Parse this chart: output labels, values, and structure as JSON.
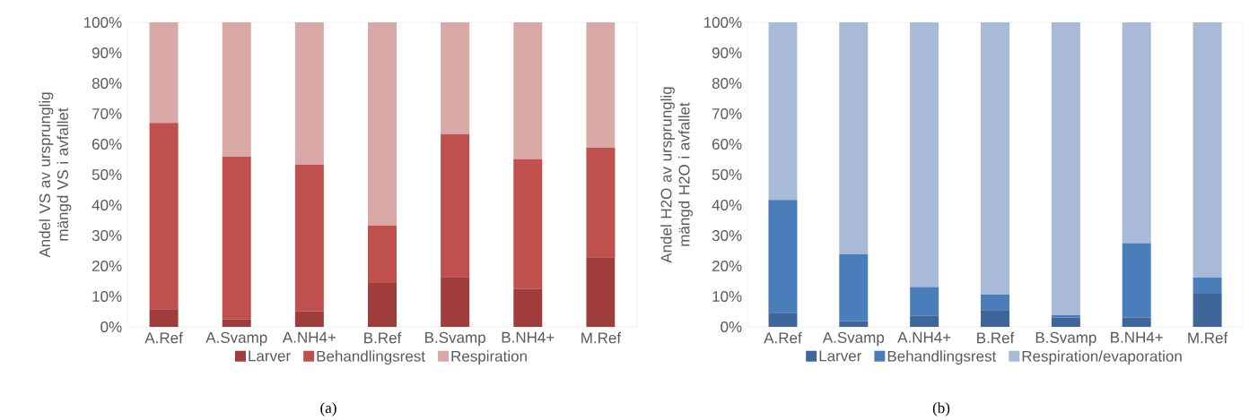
{
  "chart_data": [
    {
      "type": "bar",
      "stacked": true,
      "ylabel": "Andel VS av ursprunglig mängd VS i avfallet",
      "categories": [
        "A.Ref",
        "A.Svamp",
        "A.NH4+",
        "B.Ref",
        "B.Svamp",
        "B.NH4+",
        "M.Ref"
      ],
      "series": [
        {
          "name": "Larver",
          "color": "#9e3d3b",
          "values": [
            5.8,
            2.5,
            5.1,
            14.4,
            16.4,
            12.4,
            22.9
          ]
        },
        {
          "name": "Behandlingsrest",
          "color": "#c0504d",
          "values": [
            61.2,
            53.4,
            48.2,
            18.9,
            46.9,
            42.7,
            35.9
          ]
        },
        {
          "name": "Respiration",
          "color": "#d9a9a8",
          "values": [
            33,
            44.1,
            46.7,
            66.7,
            36.7,
            44.9,
            41.2
          ]
        }
      ],
      "ylim": [
        0,
        100
      ],
      "yticks": [
        {
          "value": 0,
          "label": "0%"
        },
        {
          "value": 10,
          "label": "10%"
        },
        {
          "value": 20,
          "label": "20%"
        },
        {
          "value": 30,
          "label": "30%"
        },
        {
          "value": 40,
          "label": "40%"
        },
        {
          "value": 50,
          "label": "50%"
        },
        {
          "value": 60,
          "label": "60%"
        },
        {
          "value": 70,
          "label": "70%"
        },
        {
          "value": 80,
          "label": "80%"
        },
        {
          "value": 90,
          "label": "90%"
        },
        {
          "value": 100,
          "label": "100%"
        }
      ],
      "grid": false,
      "legend": "bottom",
      "annotations": [
        "(a)"
      ]
    },
    {
      "type": "bar",
      "stacked": true,
      "ylabel": "Andel H2O av ursprunglig mängd H2O i avfallet",
      "categories": [
        "A.Ref",
        "A.Svamp",
        "A.NH4+",
        "B.Ref",
        "B.Svamp",
        "B.NH4+",
        "M.Ref"
      ],
      "series": [
        {
          "name": "Larver",
          "color": "#3e6699",
          "values": [
            4.6,
            1.9,
            3.6,
            5.5,
            3.1,
            3.0,
            10.9
          ]
        },
        {
          "name": "Behandlingsrest",
          "color": "#4a7ebb",
          "values": [
            37.1,
            22.0,
            9.5,
            5.1,
            0.7,
            24.5,
            5.3
          ]
        },
        {
          "name": "Respiration/evaporation",
          "color": "#a9b9d8",
          "values": [
            58.3,
            76.1,
            86.9,
            89.4,
            96.2,
            72.5,
            83.8
          ]
        }
      ],
      "ylim": [
        0,
        100
      ],
      "yticks": [
        {
          "value": 0,
          "label": "0%"
        },
        {
          "value": 10,
          "label": "10%"
        },
        {
          "value": 20,
          "label": "20%"
        },
        {
          "value": 30,
          "label": "30%"
        },
        {
          "value": 40,
          "label": "40%"
        },
        {
          "value": 50,
          "label": "50%"
        },
        {
          "value": 60,
          "label": "60%"
        },
        {
          "value": 70,
          "label": "70%"
        },
        {
          "value": 80,
          "label": "80%"
        },
        {
          "value": 90,
          "label": "90%"
        },
        {
          "value": 100,
          "label": "100%"
        }
      ],
      "grid": false,
      "legend": "bottom",
      "annotations": [
        "(b)"
      ]
    }
  ]
}
